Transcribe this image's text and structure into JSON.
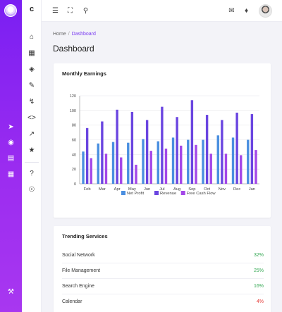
{
  "brand": "c",
  "breadcrumb": {
    "home": "Home",
    "separator": "/",
    "current": "Dashboard"
  },
  "page_title": "Dashboard",
  "earnings_card": {
    "title": "Monthly Earnings"
  },
  "services_card": {
    "title": "Trending Services",
    "items": [
      {
        "name": "Social Network",
        "value": "32%",
        "color": "#34a853"
      },
      {
        "name": "File Management",
        "value": "25%",
        "color": "#34a853"
      },
      {
        "name": "Search Engine",
        "value": "16%",
        "color": "#34a853"
      },
      {
        "name": "Calendar",
        "value": "4%",
        "color": "#e53935"
      }
    ]
  },
  "colors": {
    "accent": "#7a3cf0",
    "rail_top": "#7a1ff2",
    "rail_bottom": "#a837f0"
  },
  "chart_data": {
    "type": "bar",
    "categories": [
      "Feb",
      "Mar",
      "Apr",
      "May",
      "Jun",
      "Jul",
      "Aug",
      "Sep",
      "Oct",
      "Nov",
      "Dec",
      "Jan"
    ],
    "series": [
      {
        "name": "Net Profit",
        "color": "#4a8fe0",
        "values": [
          44,
          55,
          57,
          56,
          61,
          58,
          63,
          60,
          60,
          66,
          63,
          60
        ]
      },
      {
        "name": "Revenue",
        "color": "#6a45e0",
        "values": [
          76,
          85,
          101,
          98,
          87,
          105,
          91,
          114,
          94,
          87,
          97,
          95
        ]
      },
      {
        "name": "Free Cash Flow",
        "color": "#a447e8",
        "values": [
          35,
          41,
          36,
          26,
          45,
          48,
          52,
          53,
          41,
          41,
          39,
          46
        ]
      }
    ],
    "yticks": [
      0,
      20,
      40,
      60,
      80,
      100,
      120
    ],
    "ylim": [
      0,
      120
    ],
    "grid": true,
    "legend": "bottom"
  }
}
